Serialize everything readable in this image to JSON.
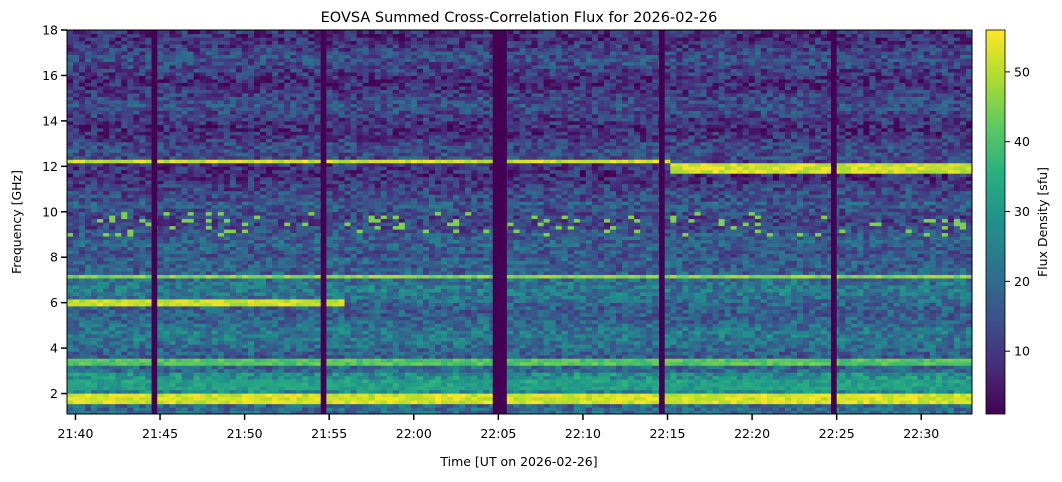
{
  "chart_data": {
    "type": "heatmap",
    "title": "EOVSA Summed Cross-Correlation Flux for 2026-02-26",
    "xlabel": "Time [UT on 2026-02-26]",
    "ylabel": "Frequency [GHz]",
    "x_ticks": [
      "21:40",
      "21:45",
      "21:50",
      "21:55",
      "22:00",
      "22:05",
      "22:10",
      "22:15",
      "22:20",
      "22:25",
      "22:30"
    ],
    "y_ticks": [
      2,
      4,
      6,
      8,
      10,
      12,
      14,
      16,
      18
    ],
    "xlim": [
      "21:39:30",
      "22:33:00"
    ],
    "ylim": [
      1.1,
      18.0
    ],
    "colorbar": {
      "label": "Flux Density [sfu]",
      "ticks": [
        10,
        20,
        30,
        40,
        50
      ],
      "range": [
        1,
        56
      ],
      "colormap": "viridis"
    },
    "data_gaps_utc": [
      [
        "21:44:30",
        "21:44:50"
      ],
      [
        "21:54:30",
        "21:54:50"
      ],
      [
        "22:04:40",
        "22:05:30"
      ],
      [
        "22:14:30",
        "22:14:50"
      ],
      [
        "22:24:40",
        "22:25:00"
      ]
    ],
    "bright_bands": [
      {
        "freq_ghz": [
          1.5,
          2.0
        ],
        "level_sfu": 56,
        "note": "saturated low-frequency band"
      },
      {
        "freq_ghz": [
          2.1,
          2.7
        ],
        "level_sfu": 35
      },
      {
        "freq_ghz": [
          3.3,
          3.5
        ],
        "level_sfu": 45
      },
      {
        "freq_ghz": [
          5.9,
          6.2
        ],
        "level_sfu": 55,
        "time": [
          "21:39:30",
          "21:56:00"
        ]
      },
      {
        "freq_ghz": [
          7.05,
          7.2
        ],
        "level_sfu": 50
      },
      {
        "freq_ghz": [
          12.2,
          12.35
        ],
        "level_sfu": 56,
        "time": [
          "21:39:30",
          "22:15:00"
        ]
      },
      {
        "freq_ghz": [
          11.75,
          12.1
        ],
        "level_sfu": 56,
        "time": [
          "22:15:00",
          "22:33:00"
        ]
      }
    ]
  }
}
